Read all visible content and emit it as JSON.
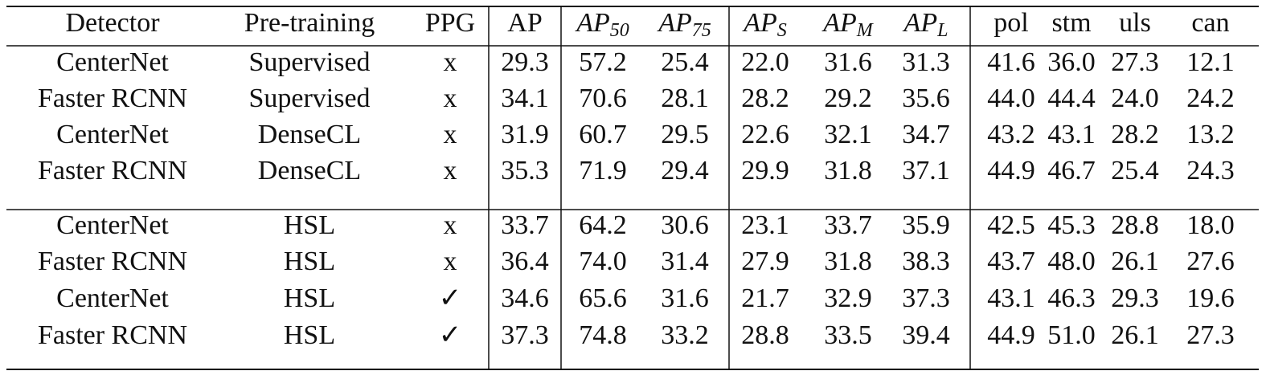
{
  "table": {
    "header": [
      "Detector",
      "Pre-training",
      "PPG",
      "AP",
      {
        "text": "AP",
        "sub": "50"
      },
      {
        "text": "AP",
        "sub": "75"
      },
      {
        "text": "AP",
        "sub": "S"
      },
      {
        "text": "AP",
        "sub": "M"
      },
      {
        "text": "AP",
        "sub": "L"
      },
      "pol",
      "stm",
      "uls",
      "can"
    ],
    "rows": [
      [
        "CenterNet",
        "Supervised",
        "x",
        "29.3",
        "57.2",
        "25.4",
        "22.0",
        "31.6",
        "31.3",
        "41.6",
        "36.0",
        "27.3",
        "12.1"
      ],
      [
        "Faster RCNN",
        "Supervised",
        "x",
        "34.1",
        "70.6",
        "28.1",
        "28.2",
        "29.2",
        "35.6",
        "44.0",
        "44.4",
        "24.0",
        "24.2"
      ],
      [
        "CenterNet",
        "DenseCL",
        "x",
        "31.9",
        "60.7",
        "29.5",
        "22.6",
        "32.1",
        "34.7",
        "43.2",
        "43.1",
        "28.2",
        "13.2"
      ],
      [
        "Faster RCNN",
        "DenseCL",
        "x",
        "35.3",
        "71.9",
        "29.4",
        "29.9",
        "31.8",
        "37.1",
        "44.9",
        "46.7",
        "25.4",
        "24.3"
      ],
      [
        "CenterNet",
        "HSL",
        "x",
        "33.7",
        "64.2",
        "30.6",
        "23.1",
        "33.7",
        "35.9",
        "42.5",
        "45.3",
        "28.8",
        "18.0"
      ],
      [
        "Faster RCNN",
        "HSL",
        "x",
        "36.4",
        "74.0",
        "31.4",
        "27.9",
        "31.8",
        "38.3",
        "43.7",
        "48.0",
        "26.1",
        "27.6"
      ],
      [
        "CenterNet",
        "HSL",
        "✓",
        "34.6",
        "65.6",
        "31.6",
        "21.7",
        "32.9",
        "37.3",
        "43.1",
        "46.3",
        "29.3",
        "19.6"
      ],
      [
        "Faster RCNN",
        "HSL",
        "✓",
        "37.3",
        "74.8",
        "33.2",
        "28.8",
        "33.5",
        "39.4",
        "44.9",
        "51.0",
        "26.1",
        "27.3"
      ]
    ]
  }
}
